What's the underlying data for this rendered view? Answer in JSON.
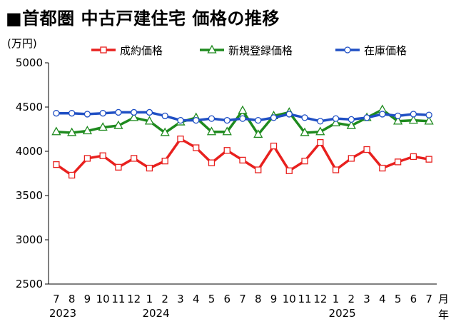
{
  "title": "■首都圏 中古戸建住宅 価格の推移",
  "chart_data": {
    "type": "line",
    "unit_label": "(万円)",
    "ylim": [
      2500,
      5000
    ],
    "yticks": [
      2500,
      3000,
      3500,
      4000,
      4500,
      5000
    ],
    "x_tick_labels": [
      "7",
      "8",
      "9",
      "10",
      "11",
      "12",
      "1",
      "2",
      "3",
      "4",
      "5",
      "6",
      "7",
      "8",
      "9",
      "10",
      "11",
      "12",
      "1",
      "2",
      "3",
      "4",
      "5",
      "6",
      "7"
    ],
    "x_unit_label": "月",
    "x_unit_label2": "年",
    "year_labels": [
      {
        "index": 0,
        "label": "2023"
      },
      {
        "index": 6,
        "label": "2024"
      },
      {
        "index": 18,
        "label": "2025"
      }
    ],
    "legend_position": "top",
    "series": [
      {
        "name": "成約価格",
        "color": "#e8201e",
        "marker": "square",
        "values": [
          3850,
          3730,
          3920,
          3950,
          3820,
          3920,
          3810,
          3890,
          4140,
          4040,
          3870,
          4010,
          3900,
          3790,
          4060,
          3780,
          3890,
          4100,
          3790,
          3920,
          4020,
          3810,
          3880,
          3940,
          3910
        ]
      },
      {
        "name": "新規登録価格",
        "color": "#1e8a1e",
        "marker": "triangle",
        "values": [
          4220,
          4210,
          4230,
          4270,
          4290,
          4380,
          4340,
          4210,
          4330,
          4380,
          4220,
          4220,
          4460,
          4190,
          4400,
          4440,
          4210,
          4220,
          4320,
          4290,
          4380,
          4470,
          4340,
          4350,
          4340
        ]
      },
      {
        "name": "在庫価格",
        "color": "#1f4fc4",
        "marker": "circle",
        "values": [
          4430,
          4430,
          4420,
          4430,
          4440,
          4440,
          4440,
          4400,
          4350,
          4350,
          4370,
          4350,
          4370,
          4350,
          4380,
          4420,
          4380,
          4340,
          4370,
          4360,
          4380,
          4420,
          4400,
          4420,
          4410
        ]
      }
    ]
  }
}
